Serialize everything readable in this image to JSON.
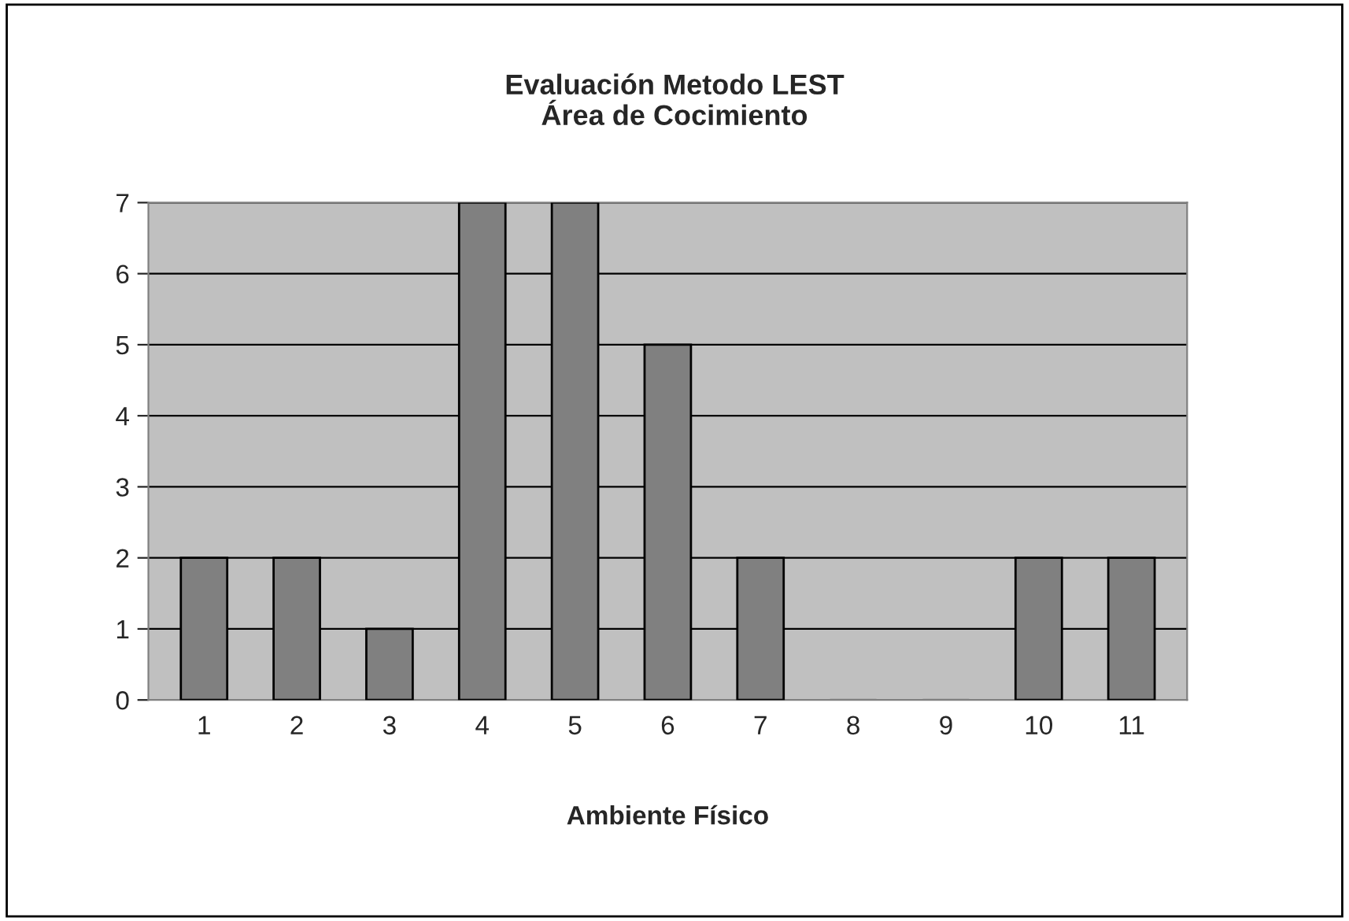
{
  "chart_data": {
    "type": "bar",
    "title": "Evaluación Metodo LEST\nÁrea de Cocimiento",
    "xlabel": "Ambiente Físico",
    "categories": [
      "1",
      "2",
      "3",
      "4",
      "5",
      "6",
      "7",
      "8",
      "9",
      "10",
      "11"
    ],
    "values": [
      2,
      2,
      1,
      7,
      7,
      5,
      2,
      0,
      0,
      2,
      2
    ],
    "color": "#808080",
    "ylim": [
      0,
      7
    ],
    "yticks": [
      0,
      1,
      2,
      3,
      4,
      5,
      6,
      7
    ],
    "grid": "y",
    "legend": false
  }
}
